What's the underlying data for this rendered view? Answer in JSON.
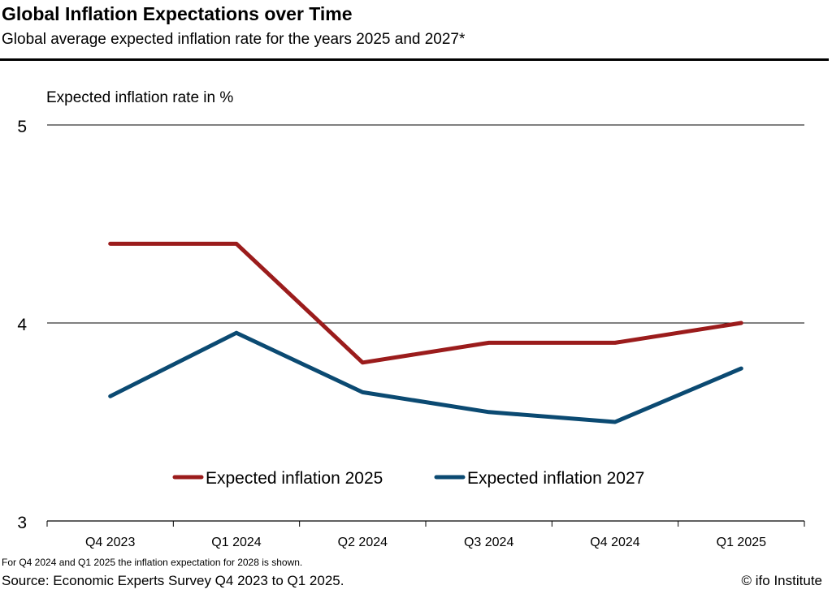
{
  "header": {
    "title": "Global Inflation Expectations over Time",
    "subtitle": "Global average expected inflation rate for the years 2025 and 2027*"
  },
  "chart_data": {
    "type": "line",
    "title": "Global Inflation Expectations over Time",
    "subtitle": "Global average expected inflation rate for the years 2025 and 2027*",
    "ylabel": "Expected inflation rate in %",
    "xlabel": "",
    "ylim": [
      3,
      5
    ],
    "yticks": [
      "3",
      "4",
      "5"
    ],
    "gridlines": [
      4,
      5
    ],
    "categories": [
      "Q4 2023",
      "Q1 2024",
      "Q2 2024",
      "Q3 2024",
      "Q4 2024",
      "Q1 2025"
    ],
    "series": [
      {
        "name": "Expected inflation 2025",
        "color": "#9b1c1c",
        "values": [
          4.4,
          4.4,
          3.8,
          3.9,
          3.9,
          4.0
        ]
      },
      {
        "name": "Expected inflation 2027",
        "color": "#0b4a72",
        "values": [
          3.63,
          3.95,
          3.65,
          3.55,
          3.5,
          3.77
        ]
      }
    ],
    "legend": "bottom-center"
  },
  "footer": {
    "note": "For Q4 2024 and Q1 2025 the inflation expectation for 2028 is shown.",
    "source": "Source: Economic Experts Survey Q4 2023 to Q1 2025.",
    "credit": "© ifo Institute"
  }
}
